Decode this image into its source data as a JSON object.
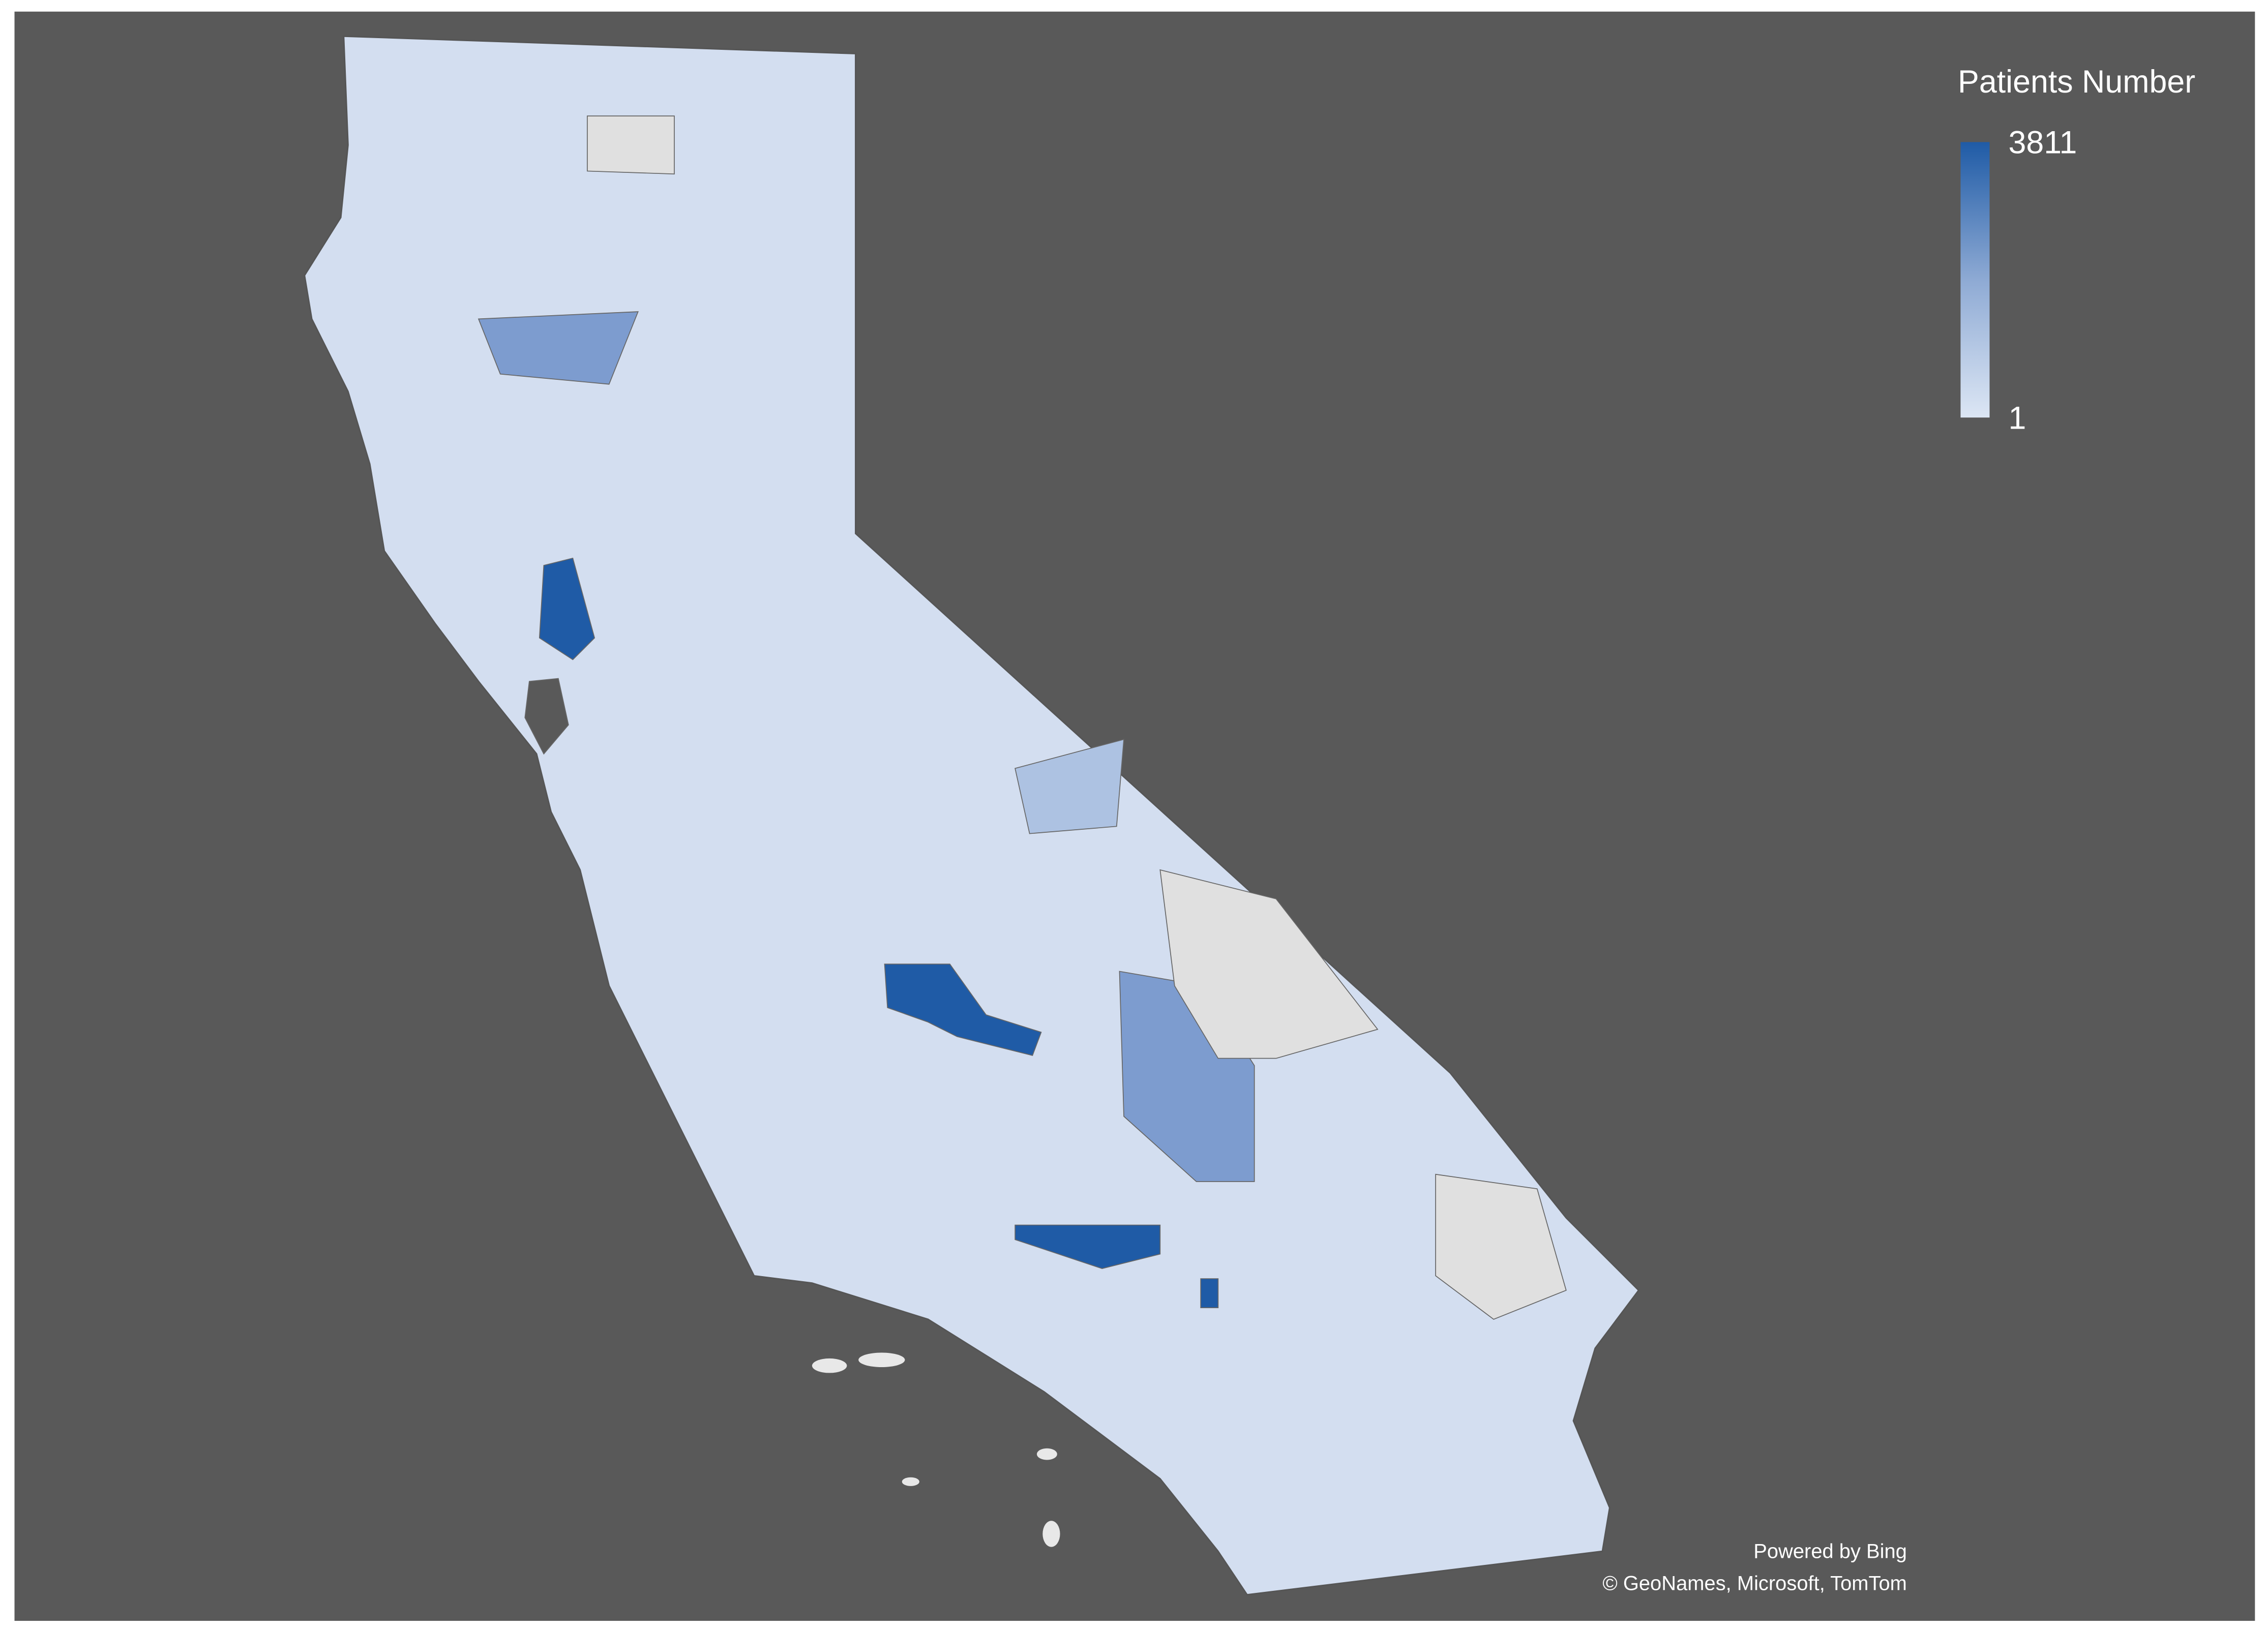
{
  "legend": {
    "title": "Patients Number",
    "max": 3811,
    "min": 1
  },
  "attribution": {
    "line1": "Powered by Bing",
    "line2": "© GeoNames, Microsoft, TomTom"
  }
}
